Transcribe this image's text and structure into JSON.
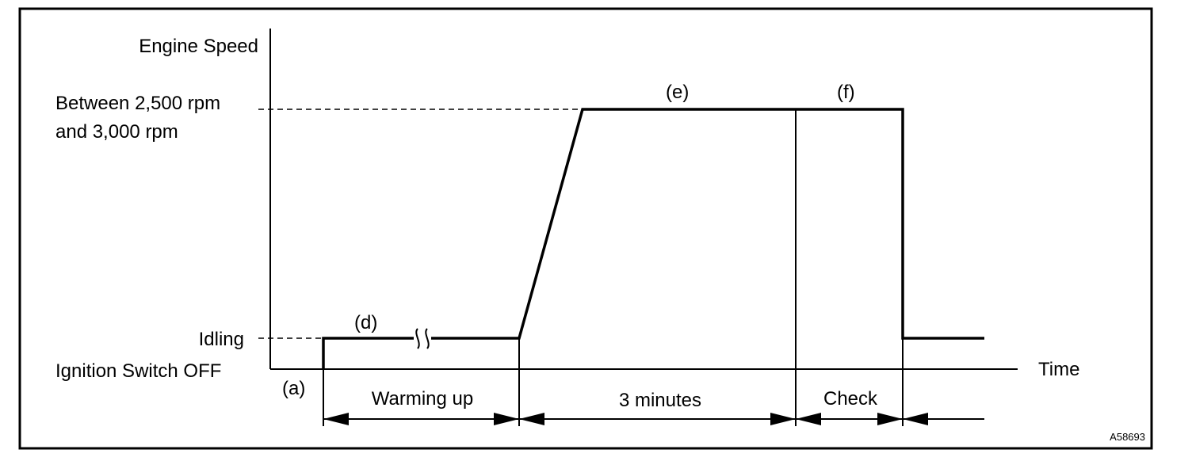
{
  "diagram": {
    "y_axis_title": "Engine Speed",
    "x_axis_title": "Time",
    "levels": {
      "high_line1": "Between 2,500 rpm",
      "high_line2": "and 3,000 rpm",
      "idling": "Idling",
      "ignition_off": "Ignition Switch OFF"
    },
    "markers": {
      "a": "(a)",
      "d": "(d)",
      "e": "(e)",
      "f": "(f)"
    },
    "intervals": {
      "warming_up": "Warming up",
      "three_minutes": "3 minutes",
      "check": "Check"
    },
    "figure_code": "A58693"
  }
}
